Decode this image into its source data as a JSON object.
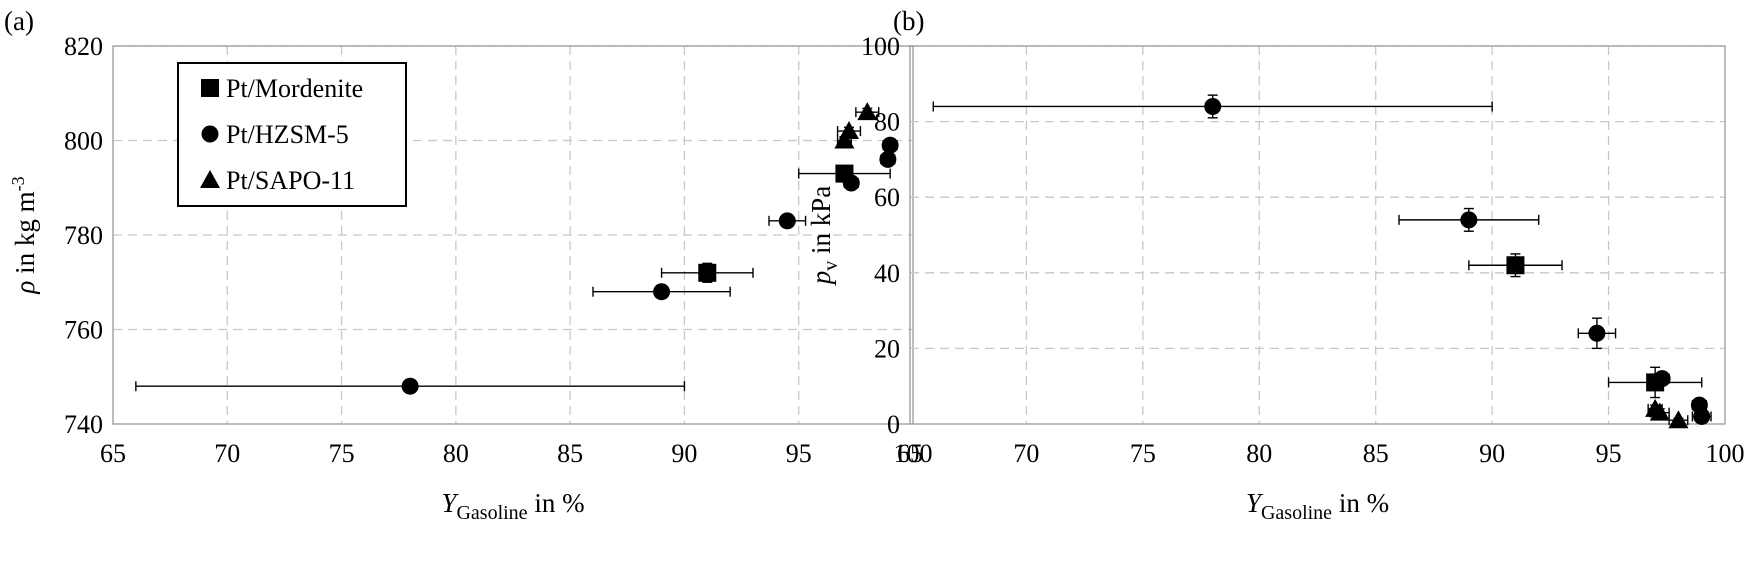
{
  "chart_data": [
    {
      "panel_label": "(a)",
      "type": "scatter",
      "ylabel_symbol": "ρ",
      "ylabel_text": " in kg m",
      "ylabel_superscript": "-3",
      "xlabel_symbol": "Y",
      "xlabel_subscript": "Gasoline",
      "xlabel_text": " in %",
      "xlim": [
        65,
        100
      ],
      "ylim": [
        740,
        820
      ],
      "xticks": [
        "65",
        "70",
        "75",
        "80",
        "85",
        "90",
        "95",
        "100"
      ],
      "yticks": [
        "740",
        "760",
        "780",
        "800",
        "820"
      ],
      "grid": true,
      "legend_position": "top-left",
      "series": [
        {
          "name": "Pt/Mordenite",
          "marker": "square",
          "points": [
            {
              "x": 91.0,
              "y": 772,
              "xerr": 2.0,
              "yerr": 2.0
            },
            {
              "x": 97.0,
              "y": 793,
              "xerr": 2.0,
              "yerr": 1.0
            }
          ]
        },
        {
          "name": "Pt/HZSM-5",
          "marker": "circle",
          "points": [
            {
              "x": 78.0,
              "y": 748,
              "xerr": 12.0,
              "yerr": 0.5
            },
            {
              "x": 89.0,
              "y": 768,
              "xerr": 3.0,
              "yerr": 1.0
            },
            {
              "x": 94.5,
              "y": 783,
              "xerr": 0.8,
              "yerr": 1.0
            },
            {
              "x": 97.3,
              "y": 791,
              "xerr": 0.3,
              "yerr": 0.8
            },
            {
              "x": 98.9,
              "y": 796,
              "xerr": 0.3,
              "yerr": 0.8
            },
            {
              "x": 99.0,
              "y": 799,
              "xerr": 0.3,
              "yerr": 0.6
            }
          ]
        },
        {
          "name": "Pt/SAPO-11",
          "marker": "triangle",
          "points": [
            {
              "x": 97.0,
              "y": 800,
              "xerr": 0.3,
              "yerr": 0.8
            },
            {
              "x": 97.2,
              "y": 802,
              "xerr": 0.5,
              "yerr": 0.8
            },
            {
              "x": 98.0,
              "y": 806,
              "xerr": 0.5,
              "yerr": 0.8
            }
          ]
        }
      ]
    },
    {
      "panel_label": "(b)",
      "type": "scatter",
      "ylabel_symbol": "p",
      "ylabel_subscript": "v",
      "ylabel_text": " in kPa",
      "xlabel_symbol": "Y",
      "xlabel_subscript": "Gasoline",
      "xlabel_text": " in %",
      "xlim": [
        65,
        100
      ],
      "ylim": [
        0,
        100
      ],
      "xticks": [
        "65",
        "70",
        "75",
        "80",
        "85",
        "90",
        "95",
        "100"
      ],
      "yticks": [
        "0",
        "20",
        "40",
        "60",
        "80",
        "100"
      ],
      "grid": true,
      "series": [
        {
          "name": "Pt/Mordenite",
          "marker": "square",
          "points": [
            {
              "x": 91.0,
              "y": 42,
              "xerr": 2.0,
              "yerr": 3.0
            },
            {
              "x": 97.0,
              "y": 11,
              "xerr": 2.0,
              "yerr": 4.0
            }
          ]
        },
        {
          "name": "Pt/HZSM-5",
          "marker": "circle",
          "points": [
            {
              "x": 78.0,
              "y": 84,
              "xerr": 12.0,
              "yerr": 3.0
            },
            {
              "x": 89.0,
              "y": 54,
              "xerr": 3.0,
              "yerr": 3.0
            },
            {
              "x": 94.5,
              "y": 24,
              "xerr": 0.8,
              "yerr": 4.0
            },
            {
              "x": 97.3,
              "y": 12,
              "xerr": 0.3,
              "yerr": 1.0
            },
            {
              "x": 98.9,
              "y": 5,
              "xerr": 0.3,
              "yerr": 1.0
            },
            {
              "x": 99.0,
              "y": 2,
              "xerr": 0.4,
              "yerr": 1.0
            }
          ]
        },
        {
          "name": "Pt/SAPO-11",
          "marker": "triangle",
          "points": [
            {
              "x": 97.0,
              "y": 4,
              "xerr": 0.3,
              "yerr": 1.0
            },
            {
              "x": 97.2,
              "y": 3,
              "xerr": 0.4,
              "yerr": 1.0
            },
            {
              "x": 98.0,
              "y": 1,
              "xerr": 0.4,
              "yerr": 0.5
            }
          ]
        }
      ]
    }
  ]
}
